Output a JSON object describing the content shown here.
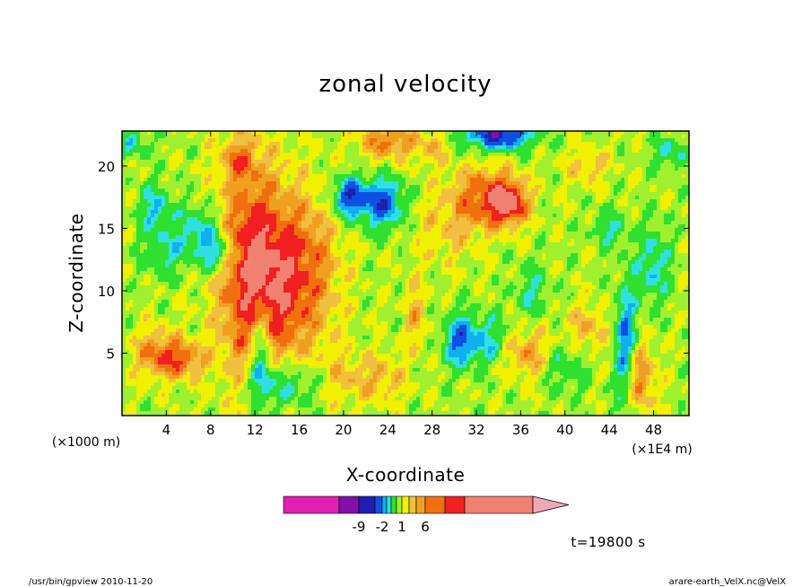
{
  "chart_data": {
    "type": "heatmap",
    "title": "zonal velocity",
    "xlabel": "X-coordinate",
    "ylabel": "Z-coordinate",
    "x_unit": "(×1E4 m)",
    "y_unit": "(×1000 m)",
    "xlim": [
      0,
      51.2
    ],
    "ylim": [
      0,
      22.8
    ],
    "x_ticks": [
      4,
      8,
      12,
      16,
      20,
      24,
      28,
      32,
      36,
      40,
      44,
      48
    ],
    "x_tick_labels": [
      "4",
      "8",
      "12",
      "16",
      "20",
      "24",
      "28",
      "32",
      "36",
      "40",
      "44",
      "48"
    ],
    "y_ticks": [
      5,
      10,
      15,
      20
    ],
    "y_tick_labels": [
      "5",
      "10",
      "15",
      "20"
    ],
    "color_levels": [
      "#e020b0",
      "#8010a8",
      "#2020b0",
      "#1050e0",
      "#10b0f0",
      "#30e0e0",
      "#30e030",
      "#a0f030",
      "#f0f000",
      "#f0c040",
      "#f0a020",
      "#f07010",
      "#f02020",
      "#f08070"
    ],
    "colorbar_labels": [
      "-9",
      "-2",
      "1",
      "6"
    ],
    "colorbar_values": [
      -9,
      -2,
      1,
      6
    ],
    "time_label": "t=19800 s"
  },
  "footer": {
    "left": "/usr/bin/gpview   2010-11-20",
    "right": "arare-earth_VelX.nc@VelX"
  }
}
